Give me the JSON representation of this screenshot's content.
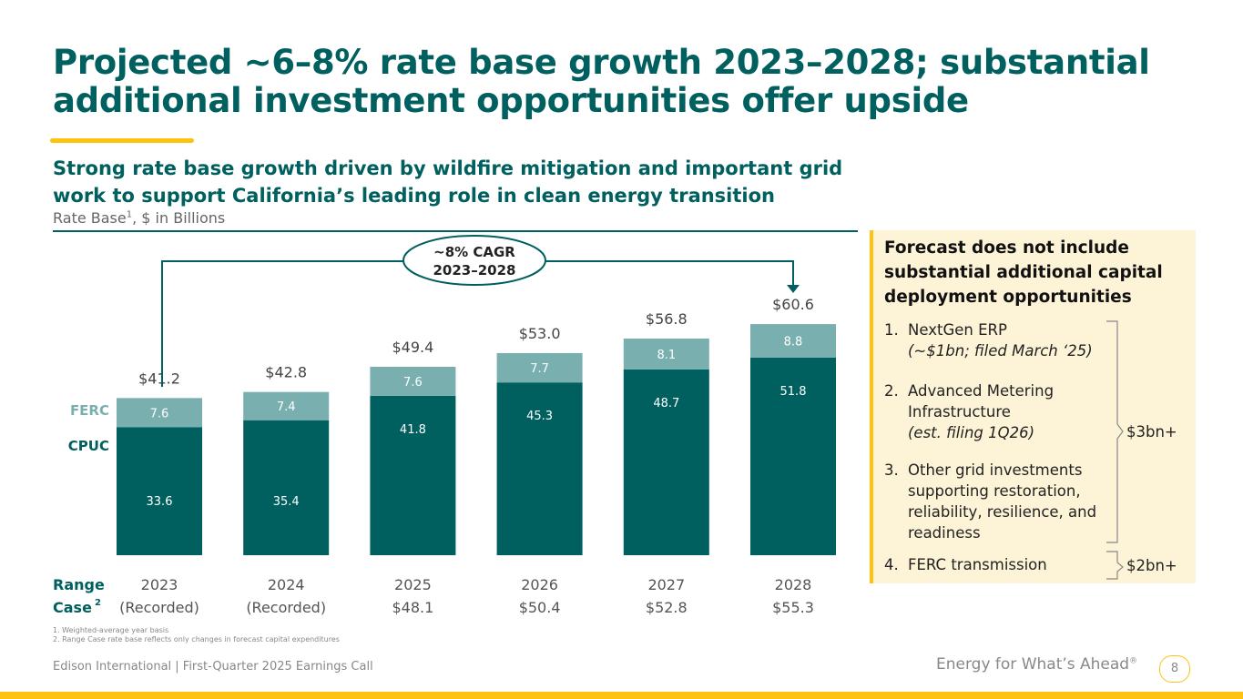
{
  "title": "Projected ~6–8% rate base growth 2023–2028; substantial additional investment opportunities offer upside",
  "subtitle": "Strong rate base growth driven by wildfire mitigation and important grid work to support California’s leading role in clean energy transition",
  "unit_label": "Rate Base",
  "unit_sup": "1",
  "unit_suffix": ", $ in Billions",
  "chart_data": {
    "type": "bar",
    "stacked": true,
    "categories": [
      "2023",
      "2024",
      "2025",
      "2026",
      "2027",
      "2028"
    ],
    "series": [
      {
        "name": "CPUC",
        "values": [
          33.6,
          35.4,
          41.8,
          45.3,
          48.7,
          51.8
        ],
        "color": "#00605f"
      },
      {
        "name": "FERC",
        "values": [
          7.6,
          7.4,
          7.6,
          7.7,
          8.1,
          8.8
        ],
        "color": "#7aafb0"
      }
    ],
    "totals": [
      "$41.2",
      "$42.8",
      "$49.4",
      "$53.0",
      "$56.8",
      "$60.6"
    ],
    "range_case_label": "Range",
    "range_case_label2": "Case",
    "range_case_sup": "2",
    "range_case": [
      "(Recorded)",
      "(Recorded)",
      "$48.1",
      "$50.4",
      "$52.8",
      "$55.3"
    ],
    "annotation": {
      "line1": "~8% CAGR",
      "line2": "2023–2028"
    },
    "ylim": [
      0,
      62
    ]
  },
  "box": {
    "heading": "Forecast does not include substantial additional capital deployment opportunities",
    "items": [
      {
        "n": "1.",
        "lines": [
          "NextGen ERP"
        ],
        "italic": "(~$1bn; filed March ‘25)"
      },
      {
        "n": "2.",
        "lines": [
          "Advanced Metering",
          "Infrastructure"
        ],
        "italic": "(est. filing 1Q26)"
      },
      {
        "n": "3.",
        "lines": [
          "Other grid investments",
          "supporting restoration,",
          "reliability, resilience, and",
          "readiness"
        ],
        "italic": ""
      },
      {
        "n": "4.",
        "lines": [
          "FERC transmission"
        ],
        "italic": ""
      }
    ],
    "brace1": "$3bn+",
    "brace2": "$2bn+"
  },
  "footnotes": [
    "1.  Weighted-average year basis",
    "2.  Range Case rate base reflects only changes in forecast capital expenditures"
  ],
  "footer_left": "Edison International |  First-Quarter 2025 Earnings Call",
  "footer_right": "Energy for What’s Ahead",
  "footer_right_mark": "®",
  "page": "8",
  "colors": {
    "brand": "#00605f",
    "accent": "#ffc20e"
  }
}
